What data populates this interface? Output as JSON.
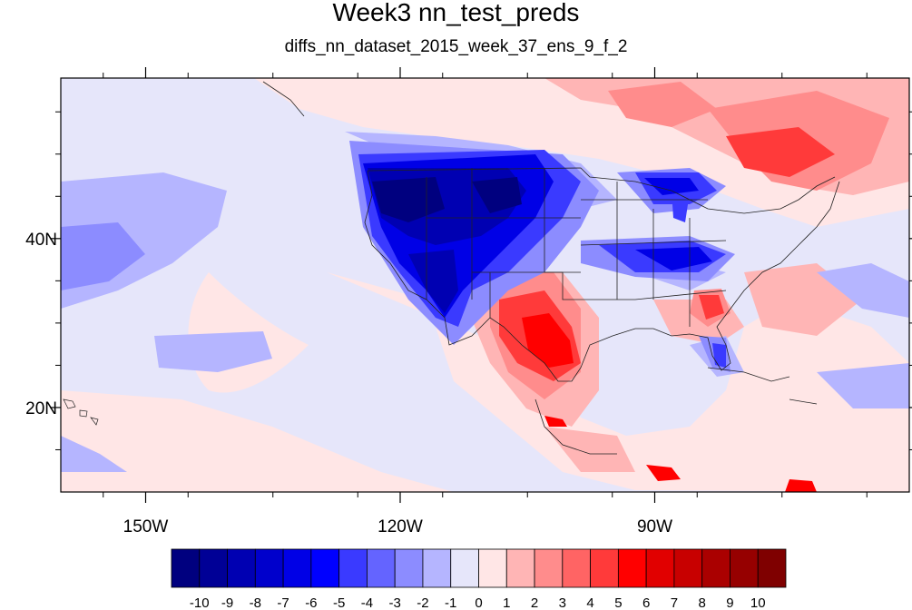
{
  "title": "Week3 nn_test_preds",
  "subtitle": "diffs_nn_dataset_2015_week_37_ens_9_f_2",
  "map": {
    "lon_range": [
      -160,
      -60
    ],
    "lat_range": [
      10,
      59
    ],
    "x_ticks": [
      {
        "lon": -150,
        "label": "150W"
      },
      {
        "lon": -120,
        "label": "120W"
      },
      {
        "lon": -90,
        "label": "90W"
      }
    ],
    "y_ticks": [
      {
        "lat": 40,
        "label": "40N"
      },
      {
        "lat": 20,
        "label": "20N"
      }
    ]
  },
  "colorbar": {
    "levels": [
      "-10",
      "-9",
      "-8",
      "-7",
      "-6",
      "-5",
      "-4",
      "-3",
      "-2",
      "-1",
      "0",
      "1",
      "2",
      "3",
      "4",
      "5",
      "6",
      "7",
      "8",
      "9",
      "10"
    ],
    "colors": [
      "#00007f",
      "#000096",
      "#0000b2",
      "#0000cc",
      "#0000e6",
      "#0000ff",
      "#3a3aff",
      "#6464ff",
      "#8c8cff",
      "#b5b5ff",
      "#e6e6fa",
      "#ffe6e6",
      "#ffb5b5",
      "#ff8c8c",
      "#ff6464",
      "#ff3a3a",
      "#ff0000",
      "#e10000",
      "#c80000",
      "#aa0000",
      "#960000",
      "#7f0000"
    ]
  }
}
